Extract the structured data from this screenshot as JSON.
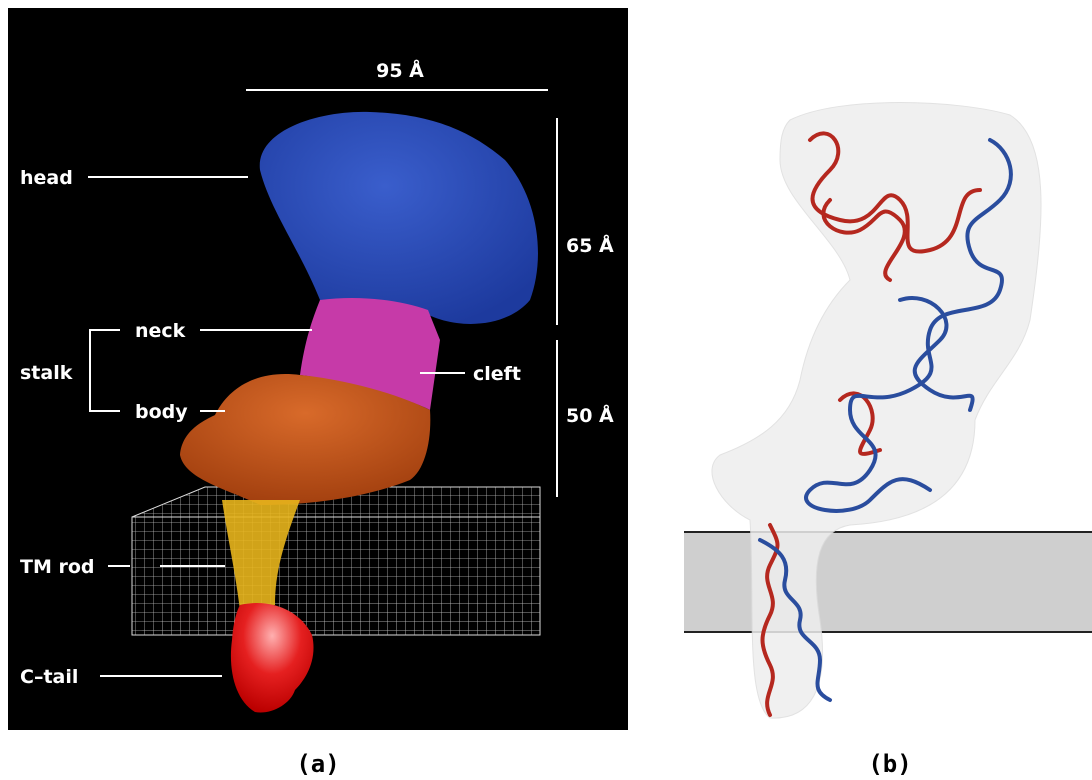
{
  "panels": {
    "a": {
      "dimensions": {
        "width": "95 Å",
        "head_height": "65 Å",
        "stalk_height": "50 Å"
      },
      "labels": {
        "head": "head",
        "neck": "neck",
        "stalk": "stalk",
        "body": "body",
        "cleft": "cleft",
        "tm_rod": "TM rod",
        "c_tail": "C–tail"
      },
      "caption": "(a)"
    },
    "b": {
      "caption": "(b)"
    }
  }
}
